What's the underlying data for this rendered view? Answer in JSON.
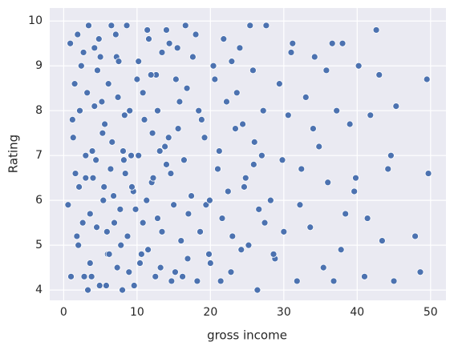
{
  "chart_data": {
    "type": "scatter",
    "xlabel": "gross income",
    "ylabel": "Rating",
    "color": "#4c72b0",
    "grid": true,
    "xlim": [
      -1.9,
      52.1
    ],
    "ylim": [
      3.77,
      10.29
    ],
    "xticks": [
      0,
      10,
      20,
      30,
      40,
      50
    ],
    "yticks": [
      4,
      5,
      6,
      7,
      8,
      9,
      10
    ],
    "x": [
      0.9,
      1.5,
      2.1,
      2.8,
      3.4,
      3.9,
      4.5,
      5.2,
      5.8,
      6.4,
      7.1,
      7.7,
      8.3,
      8.9,
      9.5,
      10.2,
      10.8,
      11.5,
      12.1,
      12.8,
      13.4,
      14.0,
      14.7,
      15.3,
      16.0,
      16.6,
      1.2,
      1.8,
      2.4,
      3.0,
      3.6,
      4.2,
      4.8,
      5.4,
      6.0,
      6.6,
      7.2,
      7.8,
      8.4,
      9.0,
      9.6,
      10.2,
      10.8,
      11.4,
      12.0,
      12.6,
      13.2,
      13.8,
      14.4,
      15.0,
      15.6,
      16.2,
      16.8,
      17.4,
      18.0,
      18.6,
      19.2,
      19.8,
      20.4,
      21.0,
      21.6,
      22.2,
      22.8,
      23.4,
      24.0,
      24.6,
      25.2,
      25.8,
      26.4,
      27.0,
      27.6,
      28.2,
      28.8,
      29.4,
      30.0,
      30.6,
      31.2,
      31.8,
      32.4,
      33.0,
      33.6,
      34.2,
      34.8,
      35.4,
      36.0,
      36.6,
      37.2,
      37.8,
      38.4,
      39.0,
      39.6,
      40.2,
      41.0,
      41.8,
      42.6,
      43.4,
      44.2,
      45.0,
      47.9,
      49.5,
      0.6,
      1.3,
      1.9,
      2.6,
      3.2,
      3.8,
      4.4,
      5.0,
      5.6,
      6.2,
      6.8,
      7.4,
      8.0,
      8.6,
      9.2,
      9.8,
      10.4,
      11.0,
      11.6,
      12.2,
      12.8,
      13.4,
      14.0,
      14.6,
      15.2,
      15.8,
      16.4,
      17.0,
      17.6,
      18.2,
      18.8,
      19.4,
      20.0,
      20.6,
      21.2,
      21.8,
      22.4,
      23.0,
      23.6,
      24.2,
      24.8,
      25.4,
      26.0,
      26.6,
      27.2,
      28.6,
      29.8,
      31.0,
      32.2,
      34.0,
      1.0,
      1.6,
      2.2,
      3.0,
      3.6,
      4.2,
      4.9,
      5.5,
      6.1,
      6.9,
      7.5,
      8.1,
      8.7,
      9.3,
      10.0,
      10.6,
      11.3,
      11.9,
      12.5,
      13.1,
      2.0,
      2.7,
      3.3,
      4.0,
      4.6,
      5.3,
      5.9,
      6.5,
      7.3,
      8.2,
      14.3,
      15.5,
      16.9,
      18.4,
      19.9,
      21.4,
      22.9,
      24.4,
      25.9,
      27.4,
      35.8,
      36.8,
      38.0,
      39.8,
      41.4,
      43.0,
      44.6,
      45.3,
      48.6,
      49.7
    ],
    "y": [
      9.5,
      8.6,
      6.3,
      4.3,
      9.9,
      7.1,
      5.4,
      8.2,
      4.1,
      6.7,
      9.7,
      5.8,
      7.9,
      4.4,
      6.2,
      9.1,
      8.4,
      4.9,
      7.5,
      5.6,
      9.3,
      6.8,
      4.2,
      8.7,
      5.1,
      9.9,
      7.8,
      5.2,
      9.0,
      6.5,
      4.6,
      8.1,
      9.6,
      6.0,
      4.8,
      7.3,
      9.2,
      5.0,
      6.6,
      8.0,
      4.1,
      7.0,
      5.5,
      9.8,
      6.4,
      8.8,
      4.5,
      7.2,
      9.5,
      5.9,
      7.6,
      4.3,
      8.5,
      6.1,
      9.7,
      5.3,
      7.4,
      4.8,
      9.0,
      6.7,
      5.6,
      8.2,
      4.4,
      7.6,
      9.4,
      6.3,
      5.0,
      8.9,
      4.0,
      7.0,
      9.9,
      6.0,
      4.7,
      8.6,
      5.3,
      7.9,
      9.5,
      4.2,
      6.7,
      8.3,
      5.4,
      9.2,
      7.2,
      4.5,
      6.4,
      9.5,
      8.0,
      4.9,
      5.7,
      7.7,
      6.2,
      9.0,
      4.3,
      7.9,
      9.8,
      5.1,
      6.7,
      4.2,
      5.2,
      8.7,
      5.9,
      7.4,
      9.7,
      5.5,
      8.4,
      4.3,
      6.9,
      9.2,
      7.7,
      4.8,
      6.1,
      8.3,
      4.0,
      9.9,
      7.0,
      5.8,
      4.6,
      7.8,
      9.6,
      6.5,
      8.0,
      5.3,
      9.8,
      6.6,
      4.4,
      8.2,
      6.9,
      5.7,
      9.2,
      4.2,
      7.8,
      5.9,
      4.6,
      8.7,
      7.1,
      9.6,
      6.2,
      5.2,
      8.4,
      4.9,
      6.5,
      9.9,
      7.3,
      5.8,
      8.0,
      4.8,
      6.9,
      9.3,
      5.9,
      7.6,
      4.3,
      6.6,
      8.0,
      7.0,
      5.7,
      9.4,
      4.1,
      6.3,
      8.6,
      5.5,
      9.1,
      7.1,
      5.2,
      6.3,
      8.7,
      4.8,
      6.0,
      8.8,
      4.3,
      7.1,
      5.0,
      9.3,
      4.0,
      6.5,
      8.9,
      7.5,
      5.3,
      9.9,
      4.5,
      6.9,
      7.4,
      9.4,
      4.7,
      8.0,
      6.0,
      4.2,
      9.1,
      7.7,
      6.8,
      5.5,
      8.9,
      4.2,
      9.5,
      6.5,
      5.6,
      8.8,
      7.0,
      8.1,
      4.4,
      6.6
    ]
  }
}
